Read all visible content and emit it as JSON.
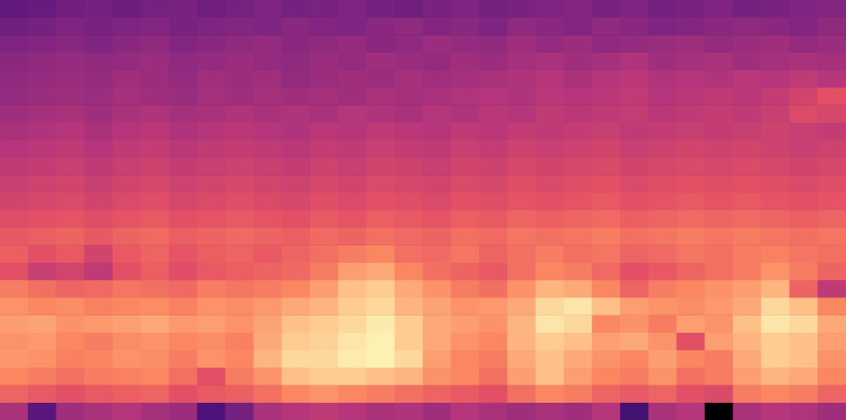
{
  "chart_data": {
    "type": "heatmap",
    "tick_labels": false,
    "zlim": [
      -80,
      0
    ],
    "cells": [
      [
        -56,
        -55,
        -53,
        -52,
        -54,
        -52,
        -51,
        -53,
        -52,
        -50,
        -52,
        -51,
        -50,
        -52,
        -53,
        -51,
        -50,
        -52,
        -51,
        -50,
        -49,
        -51,
        -50,
        -52,
        -51,
        -50,
        -52,
        -51,
        -50,
        -49
      ],
      [
        -53,
        -52,
        -50,
        -51,
        -50,
        -49,
        -51,
        -50,
        -49,
        -50,
        -48,
        -49,
        -50,
        -48,
        -47,
        -49,
        -48,
        -50,
        -47,
        -48,
        -49,
        -47,
        -48,
        -50,
        -49,
        -48,
        -47,
        -48,
        -49,
        -47
      ],
      [
        -50,
        -49,
        -48,
        -50,
        -48,
        -47,
        -49,
        -48,
        -47,
        -46,
        -48,
        -47,
        -46,
        -48,
        -47,
        -45,
        -46,
        -47,
        -44,
        -46,
        -45,
        -47,
        -46,
        -45,
        -44,
        -46,
        -45,
        -44,
        -46,
        -45
      ],
      [
        -48,
        -47,
        -46,
        -47,
        -46,
        -45,
        -47,
        -46,
        -45,
        -46,
        -47,
        -45,
        -46,
        -44,
        -45,
        -46,
        -44,
        -45,
        -43,
        -42,
        -44,
        -43,
        -41,
        -44,
        -43,
        -42,
        -44,
        -43,
        -42,
        -43
      ],
      [
        -47,
        -46,
        -45,
        -46,
        -44,
        -45,
        -46,
        -44,
        -45,
        -44,
        -46,
        -45,
        -44,
        -45,
        -43,
        -44,
        -43,
        -42,
        -41,
        -40,
        -42,
        -40,
        -39,
        -41,
        -40,
        -41,
        -39,
        -40,
        -38,
        -40
      ],
      [
        -46,
        -45,
        -44,
        -45,
        -43,
        -44,
        -45,
        -43,
        -44,
        -43,
        -44,
        -43,
        -44,
        -42,
        -43,
        -42,
        -41,
        -40,
        -41,
        -39,
        -40,
        -39,
        -38,
        -40,
        -39,
        -38,
        -39,
        -37,
        -34,
        -30
      ],
      [
        -44,
        -43,
        -42,
        -44,
        -42,
        -41,
        -43,
        -42,
        -41,
        -42,
        -41,
        -42,
        -40,
        -41,
        -42,
        -40,
        -41,
        -39,
        -40,
        -38,
        -39,
        -38,
        -37,
        -39,
        -38,
        -37,
        -38,
        -36,
        -32,
        -33
      ],
      [
        -42,
        -41,
        -40,
        -42,
        -40,
        -39,
        -41,
        -40,
        -39,
        -40,
        -41,
        -39,
        -40,
        -38,
        -39,
        -40,
        -38,
        -39,
        -37,
        -38,
        -37,
        -36,
        -38,
        -37,
        -36,
        -37,
        -36,
        -35,
        -36,
        -37
      ],
      [
        -40,
        -39,
        -38,
        -40,
        -38,
        -37,
        -39,
        -38,
        -37,
        -38,
        -39,
        -37,
        -38,
        -36,
        -37,
        -38,
        -36,
        -37,
        -35,
        -36,
        -35,
        -34,
        -36,
        -35,
        -34,
        -35,
        -34,
        -35,
        -36,
        -35
      ],
      [
        -38,
        -37,
        -36,
        -38,
        -36,
        -35,
        -37,
        -36,
        -35,
        -36,
        -37,
        -35,
        -36,
        -34,
        -35,
        -36,
        -34,
        -35,
        -33,
        -34,
        -33,
        -32,
        -34,
        -33,
        -32,
        -33,
        -32,
        -33,
        -34,
        -33
      ],
      [
        -36,
        -35,
        -34,
        -36,
        -34,
        -33,
        -35,
        -34,
        -33,
        -34,
        -35,
        -33,
        -34,
        -32,
        -33,
        -34,
        -32,
        -33,
        -31,
        -32,
        -31,
        -30,
        -32,
        -31,
        -30,
        -31,
        -30,
        -31,
        -32,
        -31
      ],
      [
        -34,
        -33,
        -32,
        -34,
        -32,
        -31,
        -33,
        -32,
        -31,
        -32,
        -33,
        -31,
        -32,
        -30,
        -31,
        -32,
        -30,
        -31,
        -29,
        -30,
        -29,
        -28,
        -30,
        -29,
        -28,
        -29,
        -28,
        -29,
        -30,
        -29
      ],
      [
        -31,
        -30,
        -29,
        -31,
        -29,
        -28,
        -30,
        -29,
        -28,
        -29,
        -30,
        -28,
        -29,
        -27,
        -28,
        -29,
        -27,
        -28,
        -26,
        -27,
        -26,
        -25,
        -27,
        -26,
        -25,
        -26,
        -25,
        -26,
        -27,
        -26
      ],
      [
        -28,
        -27,
        -26,
        -28,
        -26,
        -25,
        -27,
        -26,
        -25,
        -26,
        -27,
        -25,
        -26,
        -24,
        -25,
        -26,
        -24,
        -25,
        -23,
        -24,
        -23,
        -22,
        -24,
        -23,
        -22,
        -23,
        -22,
        -23,
        -24,
        -23
      ],
      [
        -27,
        -30,
        -28,
        -34,
        -28,
        -26,
        -29,
        -27,
        -26,
        -28,
        -26,
        -24,
        -22,
        -20,
        -24,
        -25,
        -23,
        -26,
        -24,
        -22,
        -24,
        -23,
        -26,
        -25,
        -23,
        -24,
        -22,
        -21,
        -23,
        -24
      ],
      [
        -30,
        -36,
        -34,
        -38,
        -30,
        -27,
        -31,
        -28,
        -27,
        -26,
        -25,
        -22,
        -16,
        -14,
        -20,
        -24,
        -26,
        -28,
        -24,
        -20,
        -22,
        -25,
        -30,
        -28,
        -26,
        -24,
        -22,
        -18,
        -22,
        -26
      ],
      [
        -22,
        -24,
        -26,
        -25,
        -23,
        -24,
        -25,
        -22,
        -23,
        -22,
        -20,
        -16,
        -10,
        -8,
        -14,
        -18,
        -22,
        -24,
        -18,
        -12,
        -14,
        -20,
        -26,
        -22,
        -20,
        -18,
        -16,
        -12,
        -26,
        -38
      ],
      [
        -18,
        -20,
        -19,
        -21,
        -20,
        -19,
        -21,
        -18,
        -19,
        -17,
        -14,
        -12,
        -8,
        -6,
        -12,
        -15,
        -18,
        -17,
        -14,
        -6,
        -4,
        -10,
        -16,
        -18,
        -19,
        -17,
        -14,
        -6,
        -10,
        -20
      ],
      [
        -16,
        -15,
        -18,
        -17,
        -16,
        -14,
        -17,
        -16,
        -18,
        -15,
        -10,
        -8,
        -6,
        -3,
        -8,
        -14,
        -16,
        -18,
        -12,
        -4,
        -6,
        -20,
        -18,
        -22,
        -16,
        -18,
        -10,
        -4,
        -6,
        -14
      ],
      [
        -18,
        -17,
        -20,
        -22,
        -19,
        -18,
        -20,
        -19,
        -21,
        -14,
        -8,
        -7,
        -4,
        -2,
        -8,
        -14,
        -18,
        -20,
        -12,
        -8,
        -10,
        -16,
        -14,
        -18,
        -30,
        -16,
        -12,
        -8,
        -10,
        -16
      ],
      [
        -17,
        -18,
        -21,
        -20,
        -18,
        -19,
        -22,
        -18,
        -20,
        -12,
        -6,
        -6,
        -3,
        -2,
        -6,
        -16,
        -20,
        -22,
        -14,
        -10,
        -14,
        -18,
        -20,
        -16,
        -20,
        -22,
        -14,
        -8,
        -10,
        -18
      ],
      [
        -20,
        -22,
        -24,
        -22,
        -21,
        -20,
        -24,
        -30,
        -22,
        -18,
        -10,
        -8,
        -8,
        -10,
        -12,
        -18,
        -20,
        -24,
        -16,
        -10,
        -16,
        -20,
        -22,
        -18,
        -24,
        -22,
        -16,
        -12,
        -14,
        -20
      ],
      [
        -26,
        -28,
        -30,
        -28,
        -27,
        -26,
        -30,
        -28,
        -27,
        -24,
        -20,
        -18,
        -20,
        -22,
        -24,
        -26,
        -28,
        -30,
        -24,
        -20,
        -22,
        -26,
        -28,
        -26,
        -30,
        -32,
        -22,
        -20,
        -22,
        -26
      ],
      [
        -42,
        -58,
        -44,
        -42,
        -40,
        -43,
        -45,
        -60,
        -52,
        -42,
        -40,
        -38,
        -40,
        -42,
        -41,
        -44,
        -40,
        -42,
        -44,
        -42,
        -44,
        -40,
        -62,
        -42,
        -40,
        -80,
        -42,
        -40,
        -41,
        -44
      ]
    ]
  }
}
